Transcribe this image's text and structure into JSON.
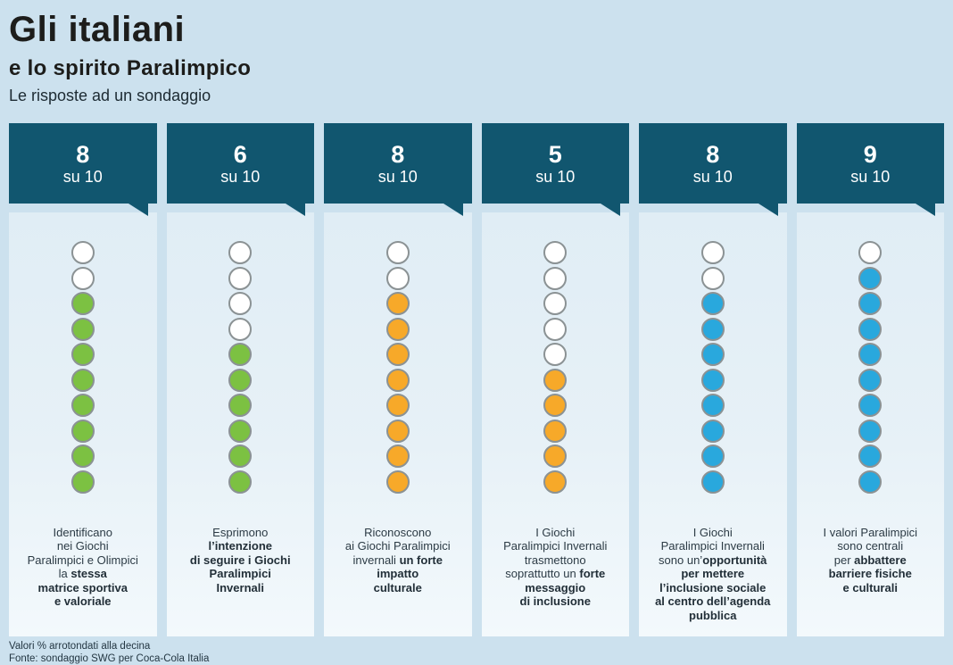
{
  "header": {
    "title": "Gli italiani",
    "subtitle": "e lo spirito Paralimpico",
    "tagline": "Le risposte ad un sondaggio"
  },
  "colors": {
    "background": "#cce1ee",
    "bubble": "#11566f",
    "card_top": "#e0edf5",
    "card_bottom": "#f3f9fc",
    "dot_border": "#8b9294",
    "dot_empty": "#ffffff",
    "green": "#7cc142",
    "orange": "#f7a929",
    "blue": "#29a8dd"
  },
  "columns": [
    {
      "score": "8",
      "of_label": "su 10",
      "value": 8,
      "total": 10,
      "dot_color": "#7cc142",
      "description": [
        {
          "text": "Identificano\nnei Giochi\nParalimpici e Olimpici\nla ",
          "bold": false
        },
        {
          "text": "stessa\nmatrice sportiva\ne valoriale",
          "bold": true
        }
      ]
    },
    {
      "score": "6",
      "of_label": "su 10",
      "value": 6,
      "total": 10,
      "dot_color": "#7cc142",
      "description": [
        {
          "text": "Esprimono\n",
          "bold": false
        },
        {
          "text": "l’intenzione\ndi seguire i Giochi\nParalimpici\nInvernali",
          "bold": true
        }
      ]
    },
    {
      "score": "8",
      "of_label": "su 10",
      "value": 8,
      "total": 10,
      "dot_color": "#f7a929",
      "description": [
        {
          "text": "Riconoscono\nai Giochi Paralimpici\ninvernali ",
          "bold": false
        },
        {
          "text": "un forte\nimpatto\nculturale",
          "bold": true
        }
      ]
    },
    {
      "score": "5",
      "of_label": "su 10",
      "value": 5,
      "total": 10,
      "dot_color": "#f7a929",
      "description": [
        {
          "text": "I Giochi\nParalimpici Invernali\ntrasmettono\nsoprattutto un ",
          "bold": false
        },
        {
          "text": "forte\nmessaggio\ndi inclusione",
          "bold": true
        }
      ]
    },
    {
      "score": "8",
      "of_label": "su 10",
      "value": 8,
      "total": 10,
      "dot_color": "#29a8dd",
      "description": [
        {
          "text": "I Giochi\nParalimpici Invernali\nsono un’",
          "bold": false
        },
        {
          "text": "opportunità\nper mettere\nl’inclusione sociale\nal centro dell’agenda\npubblica",
          "bold": true
        }
      ]
    },
    {
      "score": "9",
      "of_label": "su 10",
      "value": 9,
      "total": 10,
      "dot_color": "#29a8dd",
      "description": [
        {
          "text": "I valori Paralimpici\nsono centrali\nper ",
          "bold": false
        },
        {
          "text": "abbattere\nbarriere fisiche\ne culturali",
          "bold": true
        }
      ]
    }
  ],
  "footer": {
    "note": "Valori % arrotondati alla decina",
    "source": "Fonte: sondaggio SWG per Coca-Cola Italia"
  },
  "chart_data": {
    "type": "bar",
    "subtype": "pictogram-dots",
    "title": "Gli italiani e lo spirito Paralimpico",
    "subtitle": "Le risposte ad un sondaggio",
    "unit": "su 10",
    "ylim": [
      0,
      10
    ],
    "categories": [
      "Identificano nei Giochi Paralimpici e Olimpici la stessa matrice sportiva e valoriale",
      "Esprimono l’intenzione di seguire i Giochi Paralimpici Invernali",
      "Riconoscono ai Giochi Paralimpici invernali un forte impatto culturale",
      "I Giochi Paralimpici Invernali trasmettono soprattutto un forte messaggio di inclusione",
      "I Giochi Paralimpici Invernali sono un’opportunità per mettere l’inclusione sociale al centro dell’agenda pubblica",
      "I valori Paralimpici sono centrali per abbattere barriere fisiche e culturali"
    ],
    "values": [
      8,
      6,
      8,
      5,
      8,
      9
    ],
    "colors": [
      "#7cc142",
      "#7cc142",
      "#f7a929",
      "#f7a929",
      "#29a8dd",
      "#29a8dd"
    ],
    "legend_position": "none",
    "grid": false
  }
}
